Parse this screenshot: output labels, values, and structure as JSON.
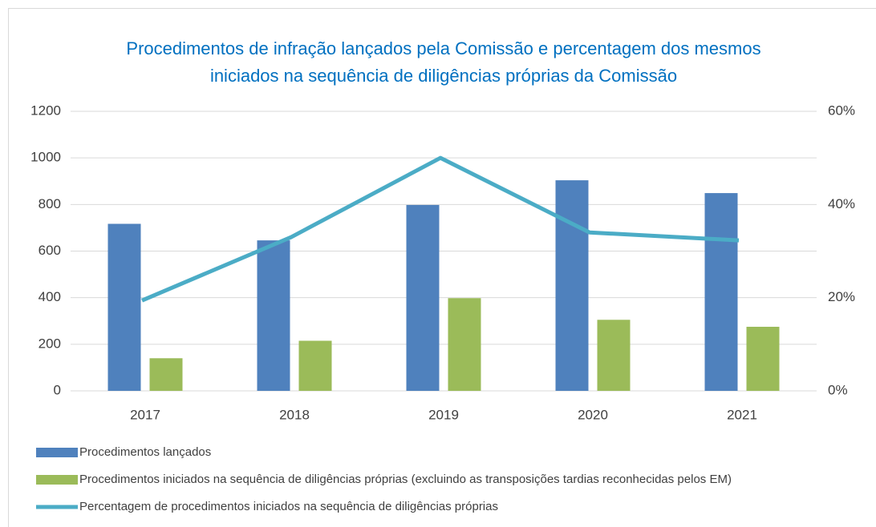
{
  "chart_data": {
    "type": "bar_line",
    "title": [
      "Procedimentos de infração lançados pela Comissão e percentagem dos mesmos",
      "iniciados na sequência de diligências próprias da Comissão"
    ],
    "categories": [
      "2017",
      "2018",
      "2019",
      "2020",
      "2021"
    ],
    "series": [
      {
        "name": "Procedimentos lançados",
        "type": "bar",
        "color": "#4f81bd",
        "values": [
          717,
          646,
          798,
          904,
          849
        ]
      },
      {
        "name": "Procedimentos iniciados na sequência de diligências próprias (excluindo as transposições tardias reconhecidas pelos EM)",
        "type": "bar",
        "color": "#9bbb59",
        "values": [
          140,
          215,
          398,
          305,
          275
        ]
      },
      {
        "name": "Percentagem de procedimentos iniciados na sequência de diligências próprias",
        "type": "line",
        "axis": "y2",
        "color": "#4bacc6",
        "values": [
          19.4,
          33,
          50,
          34,
          32.3
        ]
      }
    ],
    "ylim": [
      0,
      1200
    ],
    "yticks": [
      0,
      200,
      400,
      600,
      800,
      1000,
      1200
    ],
    "y2lim": [
      0,
      60
    ],
    "y2ticks": [
      {
        "value": 0,
        "label": "0%"
      },
      {
        "value": 20,
        "label": "20%"
      },
      {
        "value": 40,
        "label": "40%"
      },
      {
        "value": 60,
        "label": "60%"
      }
    ],
    "grid": true,
    "legend": "bottom"
  }
}
